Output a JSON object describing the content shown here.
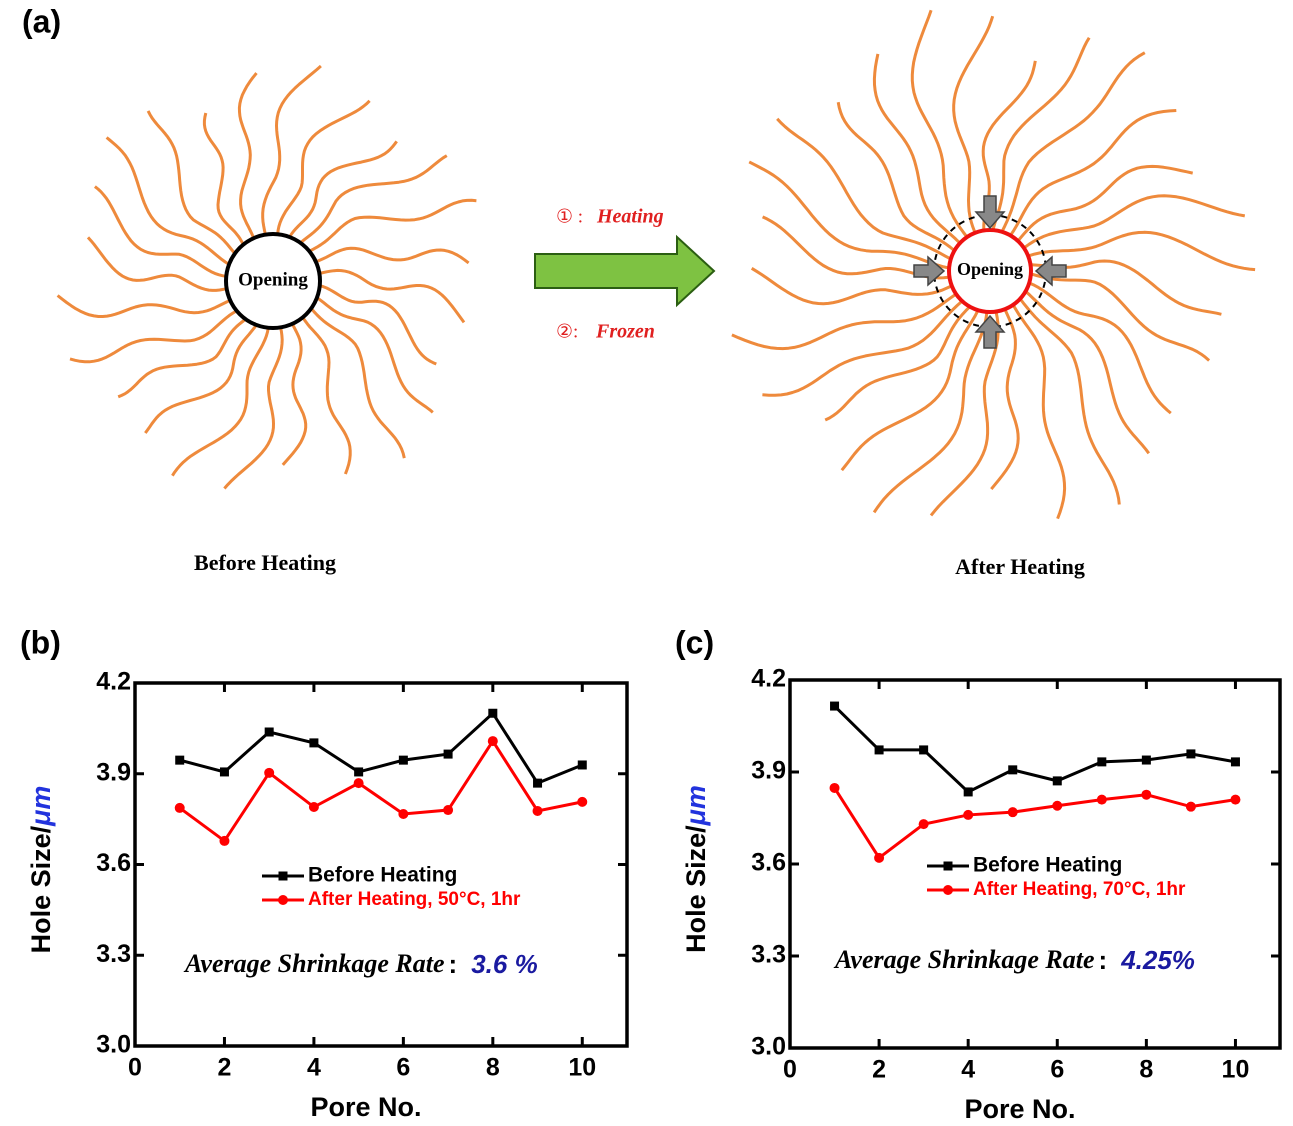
{
  "diagram": {
    "panel_label": "(a)",
    "left": {
      "center_label": "Opening",
      "caption": "Before Heating"
    },
    "right": {
      "center_label": "Opening",
      "caption": "After Heating"
    },
    "steps": [
      {
        "marker": "① :",
        "label": "Heating"
      },
      {
        "marker": "②:",
        "label": "Frozen"
      }
    ]
  },
  "chart_data": [
    {
      "type": "line",
      "panel_label": "(b)",
      "xlabel": "Pore No.",
      "ylabel": "Hole Size/",
      "ylabel_unit": "μm",
      "x": [
        1,
        2,
        3,
        4,
        5,
        6,
        7,
        8,
        9,
        10
      ],
      "xlim": [
        0,
        11
      ],
      "xticks": [
        0,
        2,
        4,
        6,
        8,
        10
      ],
      "ylim": [
        3,
        4.2
      ],
      "yticks": [
        {
          "value": 3,
          "label": "3.0"
        },
        3.3,
        3.6,
        3.9,
        4.2
      ],
      "series": [
        {
          "name": "Before Heating",
          "color": "#000000",
          "marker": "square",
          "values": [
            3.945,
            3.906,
            4.038,
            4.002,
            3.906,
            3.945,
            3.965,
            4.1,
            3.869,
            3.929
          ]
        },
        {
          "name": "After Heating, 50°C, 1hr",
          "color": "#ff0000",
          "marker": "circle",
          "values": [
            3.787,
            3.678,
            3.903,
            3.79,
            3.869,
            3.767,
            3.78,
            4.008,
            3.777,
            3.807
          ]
        }
      ],
      "annotation": {
        "label": "Average Shrinkage Rate",
        "separator": ":",
        "value": "3.6 %"
      }
    },
    {
      "type": "line",
      "panel_label": "(c)",
      "xlabel": "Pore No.",
      "ylabel": "Hole Size/",
      "ylabel_unit": "μm",
      "x": [
        1,
        2,
        3,
        4,
        5,
        6,
        7,
        8,
        9,
        10
      ],
      "xlim": [
        0,
        11
      ],
      "xticks": [
        0,
        2,
        4,
        6,
        8,
        10
      ],
      "ylim": [
        3,
        4.2
      ],
      "yticks": [
        {
          "value": 3,
          "label": "3.0"
        },
        3.3,
        3.6,
        3.9,
        4.2
      ],
      "series": [
        {
          "name": "Before Heating",
          "color": "#000000",
          "marker": "square",
          "values": [
            4.115,
            3.972,
            3.972,
            3.835,
            3.907,
            3.871,
            3.933,
            3.939,
            3.959,
            3.933
          ]
        },
        {
          "name": "After Heating, 70°C, 1hr",
          "color": "#ff0000",
          "marker": "circle",
          "values": [
            3.848,
            3.62,
            3.73,
            3.76,
            3.769,
            3.79,
            3.81,
            3.826,
            3.787,
            3.81
          ]
        }
      ],
      "annotation": {
        "label": "Average Shrinkage Rate",
        "separator": ":",
        "value": "4.25%"
      }
    }
  ]
}
